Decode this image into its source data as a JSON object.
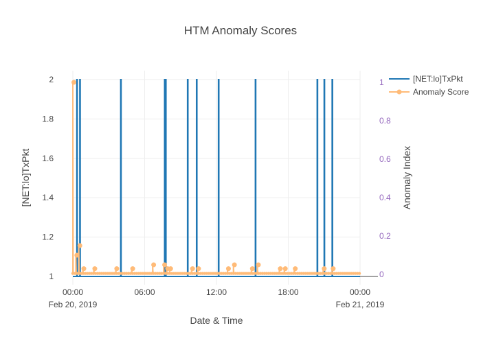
{
  "chart_data": {
    "type": "line",
    "title": "HTM Anomaly Scores",
    "xlabel": "Date & Time",
    "ylabel": "[NET:lo]TxPkt",
    "y2label": "Anomaly Index",
    "xlim": [
      "2019-02-20 00:00",
      "2019-02-21 00:00"
    ],
    "xticks": [
      {
        "value": "2019-02-20 00:00",
        "line1": "00:00",
        "line2": "Feb 20, 2019"
      },
      {
        "value": "2019-02-20 06:00",
        "line1": "06:00",
        "line2": ""
      },
      {
        "value": "2019-02-20 12:00",
        "line1": "12:00",
        "line2": ""
      },
      {
        "value": "2019-02-20 18:00",
        "line1": "18:00",
        "line2": ""
      },
      {
        "value": "2019-02-21 00:00",
        "line1": "00:00",
        "line2": "Feb 21, 2019"
      }
    ],
    "ylim": [
      1,
      2
    ],
    "yticks": [
      "1",
      "1.2",
      "1.4",
      "1.6",
      "1.8",
      "2"
    ],
    "y2lim": [
      0,
      1
    ],
    "y2ticks": [
      "0",
      "0.2",
      "0.4",
      "0.6",
      "0.8",
      "1"
    ],
    "grid": true,
    "legend_position": "top-right",
    "colors": {
      "primary": "#1f77b4",
      "secondary": "#ffbb78",
      "y2_axis": "#9467bd"
    },
    "series": [
      {
        "name": "[NET:lo]TxPkt",
        "axis": "left",
        "type": "line",
        "baseline": 1,
        "spike_value": 2,
        "spike_times": [
          "2019-02-20 00:20",
          "2019-02-20 00:35",
          "2019-02-20 04:00",
          "2019-02-20 07:40",
          "2019-02-20 07:45",
          "2019-02-20 09:35",
          "2019-02-20 10:20",
          "2019-02-20 12:10",
          "2019-02-20 15:15",
          "2019-02-20 20:25",
          "2019-02-20 21:00",
          "2019-02-20 21:40"
        ]
      },
      {
        "name": "Anomaly Score",
        "axis": "right",
        "type": "line+markers",
        "baseline": 0.005,
        "points": [
          {
            "t": "2019-02-20 00:00",
            "v": 1.0
          },
          {
            "t": "2019-02-20 00:15",
            "v": 0.1
          },
          {
            "t": "2019-02-20 00:30",
            "v": 0.15
          },
          {
            "t": "2019-02-20 00:50",
            "v": 0.03
          },
          {
            "t": "2019-02-20 01:45",
            "v": 0.03
          },
          {
            "t": "2019-02-20 03:35",
            "v": 0.03
          },
          {
            "t": "2019-02-20 04:55",
            "v": 0.03
          },
          {
            "t": "2019-02-20 06:40",
            "v": 0.05
          },
          {
            "t": "2019-02-20 07:35",
            "v": 0.05
          },
          {
            "t": "2019-02-20 07:50",
            "v": 0.03
          },
          {
            "t": "2019-02-20 08:05",
            "v": 0.03
          },
          {
            "t": "2019-02-20 09:55",
            "v": 0.03
          },
          {
            "t": "2019-02-20 10:25",
            "v": 0.03
          },
          {
            "t": "2019-02-20 12:55",
            "v": 0.03
          },
          {
            "t": "2019-02-20 13:25",
            "v": 0.05
          },
          {
            "t": "2019-02-20 14:55",
            "v": 0.03
          },
          {
            "t": "2019-02-20 15:25",
            "v": 0.05
          },
          {
            "t": "2019-02-20 17:15",
            "v": 0.03
          },
          {
            "t": "2019-02-20 17:40",
            "v": 0.03
          },
          {
            "t": "2019-02-20 18:30",
            "v": 0.03
          },
          {
            "t": "2019-02-20 20:55",
            "v": 0.03
          },
          {
            "t": "2019-02-20 21:40",
            "v": 0.03
          }
        ]
      }
    ]
  }
}
